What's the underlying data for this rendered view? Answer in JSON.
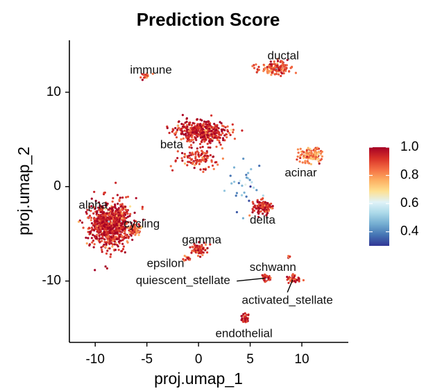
{
  "chart_data": {
    "type": "scatter",
    "title": "Prediction Score",
    "xlabel": "proj.umap_1",
    "ylabel": "proj.umap_2",
    "xlim": [
      -12.5,
      14.5
    ],
    "ylim": [
      -16.5,
      15.5
    ],
    "x_ticks": [
      -10,
      -5,
      0,
      5,
      10
    ],
    "x_tick_labels": [
      "-10",
      "-5",
      "0",
      "5",
      "10"
    ],
    "y_ticks": [
      -10,
      0,
      10
    ],
    "y_tick_labels": [
      "-10",
      "0",
      "10"
    ],
    "color_scale": {
      "name": "RdYlBu (reversed)",
      "min": 0.3,
      "max": 1.0,
      "stops": [
        "#313695",
        "#4575b4",
        "#74add1",
        "#abd9e9",
        "#e0f3f8",
        "#fee090",
        "#fdae61",
        "#f46d43",
        "#d73027",
        "#a50026"
      ],
      "ticks": [
        1.0,
        0.8,
        0.6,
        0.4
      ],
      "tick_labels": [
        "1.0",
        "0.8",
        "0.6",
        "0.4"
      ]
    },
    "clusters": [
      {
        "name": "alpha",
        "label": "alpha",
        "center": [
          -8.5,
          -4.0
        ],
        "spread": [
          1.8,
          2.1
        ],
        "n": 900,
        "score": 0.95,
        "label_pos": [
          -10.2,
          -2.0
        ]
      },
      {
        "name": "cycling",
        "label": "cycling",
        "center": [
          -6.2,
          -4.6
        ],
        "spread": [
          0.6,
          0.5
        ],
        "n": 60,
        "score": 0.85,
        "label_pos": [
          -5.5,
          -4.0
        ]
      },
      {
        "name": "beta",
        "label": "beta",
        "center": [
          0.3,
          5.8
        ],
        "spread": [
          2.3,
          1.0
        ],
        "n": 450,
        "score": 0.95,
        "label_pos": [
          -2.6,
          4.4
        ]
      },
      {
        "name": "beta-tail",
        "label": "",
        "center": [
          0.0,
          2.9
        ],
        "spread": [
          2.0,
          1.1
        ],
        "n": 110,
        "score": 0.92,
        "label_pos": null
      },
      {
        "name": "ductal",
        "label": "ductal",
        "center": [
          7.4,
          12.5
        ],
        "spread": [
          1.3,
          0.7
        ],
        "n": 140,
        "score": 0.88,
        "label_pos": [
          8.2,
          13.8
        ]
      },
      {
        "name": "immune",
        "label": "immune",
        "center": [
          -5.1,
          11.8
        ],
        "spread": [
          0.5,
          0.3
        ],
        "n": 20,
        "score": 0.92,
        "label_pos": [
          -4.6,
          12.3
        ]
      },
      {
        "name": "acinar",
        "label": "acinar",
        "center": [
          10.8,
          3.3
        ],
        "spread": [
          1.0,
          0.8
        ],
        "n": 130,
        "score": 0.82,
        "label_pos": [
          9.9,
          1.4
        ]
      },
      {
        "name": "delta",
        "label": "delta",
        "center": [
          6.3,
          -2.2
        ],
        "spread": [
          0.8,
          0.6
        ],
        "n": 130,
        "score": 0.94,
        "label_pos": [
          6.2,
          -3.6
        ]
      },
      {
        "name": "gamma",
        "label": "gamma",
        "center": [
          0.0,
          -6.6
        ],
        "spread": [
          0.6,
          0.6
        ],
        "n": 80,
        "score": 0.92,
        "label_pos": [
          0.3,
          -5.7
        ]
      },
      {
        "name": "epsilon",
        "label": "epsilon",
        "center": [
          -1.2,
          -7.6
        ],
        "spread": [
          0.3,
          0.3
        ],
        "n": 12,
        "score": 0.88,
        "label_pos": [
          -3.2,
          -8.2
        ]
      },
      {
        "name": "quiescent_stellate",
        "label": "quiescent_stellate",
        "center": [
          6.5,
          -9.7
        ],
        "spread": [
          0.45,
          0.3
        ],
        "n": 35,
        "score": 0.92,
        "label_pos": [
          -1.5,
          -10.0
        ]
      },
      {
        "name": "schwann",
        "label": "schwann",
        "center": [
          8.8,
          -7.3
        ],
        "spread": [
          0.2,
          0.2
        ],
        "n": 5,
        "score": 0.93,
        "label_pos": [
          7.2,
          -8.6
        ]
      },
      {
        "name": "activated_stellate",
        "label": "activated_stellate",
        "center": [
          9.2,
          -9.8
        ],
        "spread": [
          0.6,
          0.4
        ],
        "n": 45,
        "score": 0.9,
        "label_pos": [
          8.6,
          -12.1
        ]
      },
      {
        "name": "endothelial",
        "label": "endothelial",
        "center": [
          4.5,
          -13.9
        ],
        "spread": [
          0.3,
          0.4
        ],
        "n": 40,
        "score": 0.93,
        "label_pos": [
          4.4,
          -15.6
        ]
      },
      {
        "name": "scattered-mid",
        "label": "",
        "center": [
          4.6,
          0.6
        ],
        "spread": [
          1.3,
          2.3
        ],
        "n": 30,
        "score": 0.45,
        "label_pos": null
      }
    ],
    "label_pointers": [
      {
        "from": [
          3.7,
          -10.0
        ],
        "to": [
          6.4,
          -9.7
        ]
      },
      {
        "from": [
          8.6,
          -11.2
        ],
        "to": [
          9.1,
          -9.9
        ]
      }
    ]
  }
}
